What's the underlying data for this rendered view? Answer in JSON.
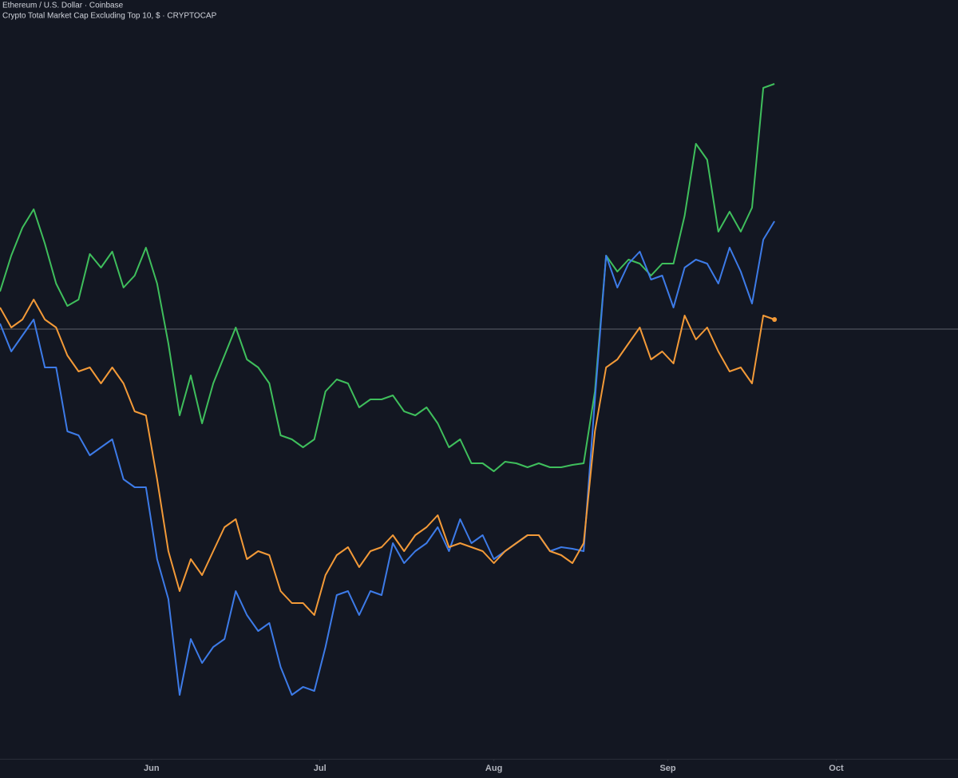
{
  "chart_data": {
    "type": "line",
    "legend": [
      "Ethereum / U.S. Dollar · Coinbase",
      "Crypto Total Market Cap Excluding Top 10, $ · CRYPTOCAP"
    ],
    "x": [
      -27,
      -25,
      -23,
      -21,
      -19,
      -17,
      -15,
      -13,
      -11,
      -9,
      -7,
      -5,
      -3,
      -1,
      1,
      3,
      5,
      7,
      9,
      11,
      13,
      15,
      17,
      19,
      21,
      23,
      25,
      27,
      29,
      31,
      33,
      35,
      37,
      39,
      41,
      43,
      45,
      47,
      49,
      51,
      53,
      55,
      57,
      59,
      61,
      63,
      65,
      67,
      69,
      71,
      73,
      75,
      77,
      79,
      81,
      83,
      85,
      87,
      89,
      91,
      93,
      95,
      97,
      99,
      101,
      103,
      105,
      107,
      109,
      111
    ],
    "xlim": [
      -27,
      143.7
    ],
    "xticks": [
      {
        "value": 0,
        "label": "Jun"
      },
      {
        "value": 30,
        "label": "Jul"
      },
      {
        "value": 61,
        "label": "Aug"
      },
      {
        "value": 92,
        "label": "Sep"
      },
      {
        "value": 122,
        "label": "Oct"
      }
    ],
    "ylim": [
      -538,
      412
    ],
    "baseline": 0,
    "series": [
      {
        "color": "#3fbf5c",
        "values": [
          47,
          92,
          127,
          150,
          107,
          57,
          29,
          37,
          94,
          77,
          97,
          52,
          67,
          102,
          57,
          -18,
          -108,
          -58,
          -118,
          -68,
          -33,
          2,
          -38,
          -48,
          -68,
          -133,
          -138,
          -148,
          -138,
          -78,
          -63,
          -68,
          -98,
          -88,
          -88,
          -83,
          -103,
          -108,
          -98,
          -118,
          -148,
          -138,
          -168,
          -168,
          -178,
          -166,
          -168,
          -173,
          -168,
          -173,
          -173,
          -170,
          -168,
          -78,
          92,
          72,
          87,
          82,
          67,
          82,
          82,
          142,
          232,
          212,
          122,
          147,
          122,
          152,
          302,
          307
        ]
      },
      {
        "color": "#3d7be8",
        "values": [
          7,
          -28,
          -8,
          12,
          -48,
          -48,
          -128,
          -133,
          -158,
          -148,
          -138,
          -188,
          -198,
          -198,
          -288,
          -338,
          -458,
          -388,
          -418,
          -398,
          -388,
          -328,
          -358,
          -378,
          -368,
          -423,
          -458,
          -448,
          -453,
          -398,
          -333,
          -328,
          -358,
          -328,
          -333,
          -268,
          -293,
          -278,
          -268,
          -248,
          -278,
          -238,
          -268,
          -258,
          -288,
          -278,
          -268,
          -258,
          -258,
          -278,
          -273,
          -275,
          -278,
          -88,
          92,
          52,
          82,
          97,
          62,
          67,
          27,
          77,
          87,
          82,
          57,
          102,
          72,
          32,
          112,
          135
        ]
      },
      {
        "color": "#f39a38",
        "values": [
          27,
          2,
          12,
          37,
          12,
          2,
          -33,
          -53,
          -48,
          -68,
          -48,
          -68,
          -103,
          -108,
          -188,
          -278,
          -328,
          -288,
          -308,
          -278,
          -248,
          -238,
          -288,
          -278,
          -283,
          -328,
          -343,
          -343,
          -358,
          -308,
          -283,
          -273,
          -298,
          -278,
          -273,
          -258,
          -278,
          -258,
          -248,
          -233,
          -273,
          -268,
          -273,
          -278,
          -293,
          -278,
          -268,
          -258,
          -258,
          -278,
          -283,
          -293,
          -268,
          -128,
          -48,
          -38,
          -18,
          2,
          -38,
          -28,
          -43,
          17,
          -13,
          2,
          -28,
          -53,
          -48,
          -68,
          17,
          12
        ]
      }
    ]
  }
}
